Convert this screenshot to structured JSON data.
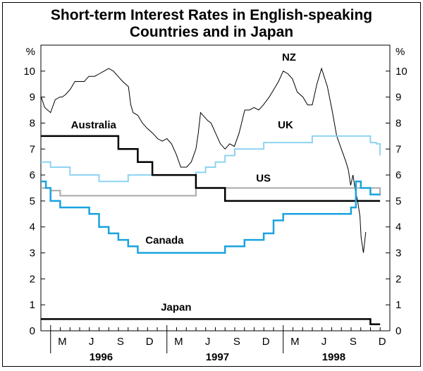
{
  "title_lines": [
    "Short-term Interest Rates in English-speaking",
    "Countries and in Japan"
  ],
  "chart_data": {
    "type": "line",
    "title": "Short-term Interest Rates in English-speaking Countries and in Japan",
    "ylabel_left": "%",
    "ylabel_right": "%",
    "ylim": [
      0,
      11
    ],
    "y_ticks": [
      0,
      1,
      2,
      3,
      4,
      5,
      6,
      7,
      8,
      9,
      10
    ],
    "x_range": [
      1995.917,
      1998.917
    ],
    "month_ticks": [
      "M",
      "J",
      "S",
      "D",
      "M",
      "J",
      "S",
      "D",
      "M",
      "J",
      "S",
      "D"
    ],
    "year_labels": [
      "1996",
      "1997",
      "1998"
    ],
    "grid": false,
    "series": [
      {
        "name": "NZ",
        "color": "#000000",
        "width": 1,
        "x": [
          1995.92,
          1995.95,
          1996.0,
          1996.04,
          1996.08,
          1996.1,
          1996.13,
          1996.17,
          1996.21,
          1996.25,
          1996.29,
          1996.33,
          1996.38,
          1996.42,
          1996.46,
          1996.5,
          1996.54,
          1996.58,
          1996.62,
          1996.67,
          1996.69,
          1996.71,
          1996.75,
          1996.79,
          1996.83,
          1996.88,
          1996.92,
          1996.96,
          1997.0,
          1997.04,
          1997.08,
          1997.12,
          1997.17,
          1997.21,
          1997.25,
          1997.27,
          1997.29,
          1997.31,
          1997.33,
          1997.35,
          1997.38,
          1997.42,
          1997.46,
          1997.5,
          1997.54,
          1997.58,
          1997.62,
          1997.67,
          1997.71,
          1997.75,
          1997.79,
          1997.83,
          1997.88,
          1997.92,
          1997.96,
          1998.0,
          1998.04,
          1998.08,
          1998.12,
          1998.17,
          1998.21,
          1998.25,
          1998.29,
          1998.33,
          1998.38,
          1998.42,
          1998.46,
          1998.5,
          1998.54,
          1998.56,
          1998.58,
          1998.6,
          1998.62,
          1998.64,
          1998.66,
          1998.67,
          1998.69,
          1998.71
        ],
        "y": [
          9.0,
          8.6,
          8.4,
          8.9,
          9.0,
          9.0,
          9.1,
          9.3,
          9.6,
          9.6,
          9.6,
          9.8,
          9.8,
          9.9,
          10.0,
          10.1,
          10.0,
          9.8,
          9.6,
          9.4,
          8.7,
          8.4,
          8.3,
          8.0,
          7.8,
          7.6,
          7.4,
          7.3,
          7.4,
          7.2,
          6.8,
          6.3,
          6.3,
          6.5,
          7.0,
          7.6,
          8.4,
          8.3,
          8.2,
          8.1,
          8.0,
          7.6,
          7.2,
          7.0,
          7.2,
          7.1,
          7.6,
          8.5,
          8.5,
          8.6,
          8.5,
          8.7,
          9.0,
          9.3,
          9.6,
          10.0,
          9.9,
          9.7,
          9.2,
          9.0,
          8.7,
          8.7,
          9.5,
          10.1,
          9.4,
          8.5,
          7.5,
          7.0,
          6.5,
          6.2,
          5.6,
          6.0,
          5.4,
          5.0,
          4.4,
          3.6,
          3.0,
          3.8
        ]
      },
      {
        "name": "UK",
        "color": "#8ed3f2",
        "width": 2,
        "x": [
          1995.917,
          1996.0,
          1996.167,
          1996.417,
          1996.667,
          1996.917,
          1997.25,
          1997.333,
          1997.417,
          1997.5,
          1997.583,
          1997.833,
          1998.25,
          1998.667,
          1998.75,
          1998.8,
          1998.833
        ],
        "y": [
          6.5,
          6.3,
          6.0,
          5.75,
          6.0,
          6.0,
          6.1,
          6.3,
          6.5,
          6.75,
          7.0,
          7.25,
          7.5,
          7.5,
          7.25,
          7.2,
          6.75
        ]
      },
      {
        "name": "US",
        "color": "#a8a8a8",
        "width": 2,
        "x": [
          1995.917,
          1996.0,
          1996.083,
          1997.167,
          1997.25,
          1998.75,
          1998.833
        ],
        "y": [
          5.5,
          5.4,
          5.2,
          5.2,
          5.5,
          5.5,
          5.2
        ]
      },
      {
        "name": "Australia",
        "color": "#000000",
        "width": 2.5,
        "x": [
          1995.917,
          1996.583,
          1996.75,
          1996.875,
          1997.0,
          1997.25,
          1997.5,
          1998.833
        ],
        "y": [
          7.5,
          7.0,
          6.5,
          6.0,
          6.0,
          5.5,
          5.0,
          5.0
        ]
      },
      {
        "name": "Canada",
        "color": "#1aa3df",
        "width": 2.5,
        "x": [
          1995.917,
          1995.96,
          1996.0,
          1996.083,
          1996.167,
          1996.333,
          1996.417,
          1996.5,
          1996.583,
          1996.667,
          1996.75,
          1997.333,
          1997.5,
          1997.667,
          1997.833,
          1997.917,
          1998.0,
          1998.583,
          1998.625,
          1998.667,
          1998.75,
          1998.833
        ],
        "y": [
          5.75,
          5.5,
          5.0,
          4.75,
          4.75,
          4.5,
          4.0,
          3.75,
          3.5,
          3.25,
          3.0,
          3.0,
          3.25,
          3.5,
          3.75,
          4.25,
          4.5,
          4.75,
          5.75,
          5.5,
          5.25,
          5.25
        ]
      },
      {
        "name": "Japan",
        "color": "#000000",
        "width": 2.5,
        "x": [
          1995.917,
          1998.667,
          1998.75,
          1998.833
        ],
        "y": [
          0.45,
          0.45,
          0.25,
          0.25
        ]
      }
    ],
    "series_labels": [
      {
        "name": "NZ",
        "x": 1998.05,
        "y": 10.4
      },
      {
        "name": "Australia",
        "x": 1996.37,
        "y": 7.8
      },
      {
        "name": "UK",
        "x": 1998.02,
        "y": 7.8
      },
      {
        "name": "US",
        "x": 1997.83,
        "y": 5.75
      },
      {
        "name": "Canada",
        "x": 1996.98,
        "y": 3.35
      },
      {
        "name": "Japan",
        "x": 1997.08,
        "y": 0.77
      }
    ]
  }
}
